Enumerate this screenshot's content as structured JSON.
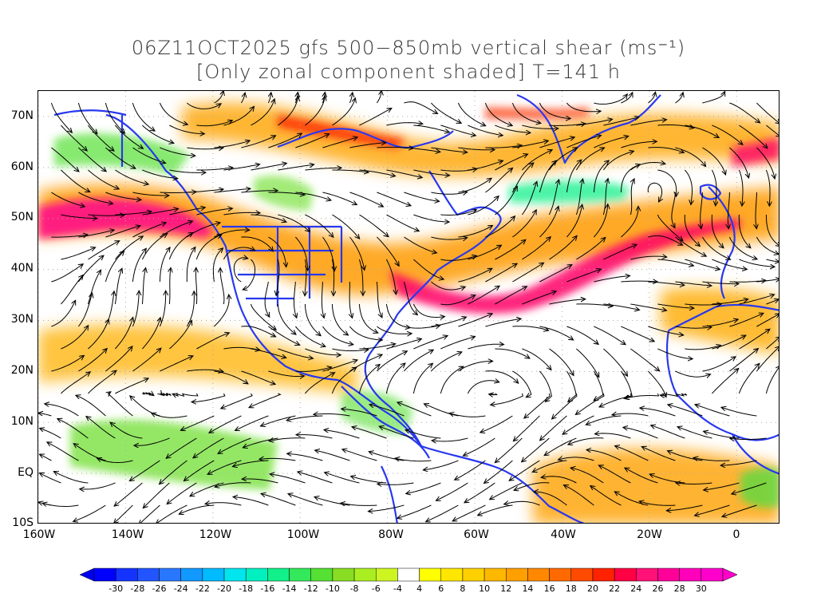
{
  "title": {
    "line1": "06Z11OCT2025 gfs 500−850mb vertical shear (ms⁻¹)",
    "line2": "[Only zonal component shaded] T=141 h"
  },
  "axes": {
    "lat_labels": [
      "70N",
      "60N",
      "50N",
      "40N",
      "30N",
      "20N",
      "10N",
      "EQ",
      "10S"
    ],
    "lat_values": [
      70,
      60,
      50,
      40,
      30,
      20,
      10,
      0,
      -10
    ],
    "lon_labels": [
      "160W",
      "140W",
      "120W",
      "100W",
      "80W",
      "60W",
      "40W",
      "20W",
      "0"
    ],
    "lon_values": [
      -160,
      -140,
      -120,
      -100,
      -80,
      -60,
      -40,
      -20,
      0
    ],
    "lon_range": [
      -160,
      10
    ],
    "lat_range": [
      -10,
      75
    ]
  },
  "colorbar": {
    "labels": [
      "-30",
      "-28",
      "-26",
      "-24",
      "-22",
      "-20",
      "-18",
      "-16",
      "-14",
      "-12",
      "-10",
      "-8",
      "-6",
      "-4",
      "4",
      "6",
      "8",
      "10",
      "12",
      "14",
      "16",
      "18",
      "20",
      "22",
      "24",
      "26",
      "28",
      "30"
    ],
    "colors": [
      "#0000ff",
      "#1433ff",
      "#2255ff",
      "#2a77ff",
      "#1199ff",
      "#00bbff",
      "#00e5ee",
      "#00f0c0",
      "#11f08a",
      "#33e85a",
      "#55e033",
      "#88dd22",
      "#aaee22",
      "#ccf522",
      "#ffffff",
      "#ffff00",
      "#ffe600",
      "#ffd000",
      "#ffb800",
      "#ff9f00",
      "#ff8800",
      "#ff6a00",
      "#ff4a00",
      "#ff2200",
      "#ff0044",
      "#ff1177",
      "#ff0099",
      "#ff00bb",
      "#ff00cc"
    ],
    "under_color": "#0000ee",
    "over_color": "#ff00cc"
  },
  "colors": {
    "coastline": "#2838ee",
    "streamline": "#000000",
    "grid": "#aaaaaa"
  }
}
